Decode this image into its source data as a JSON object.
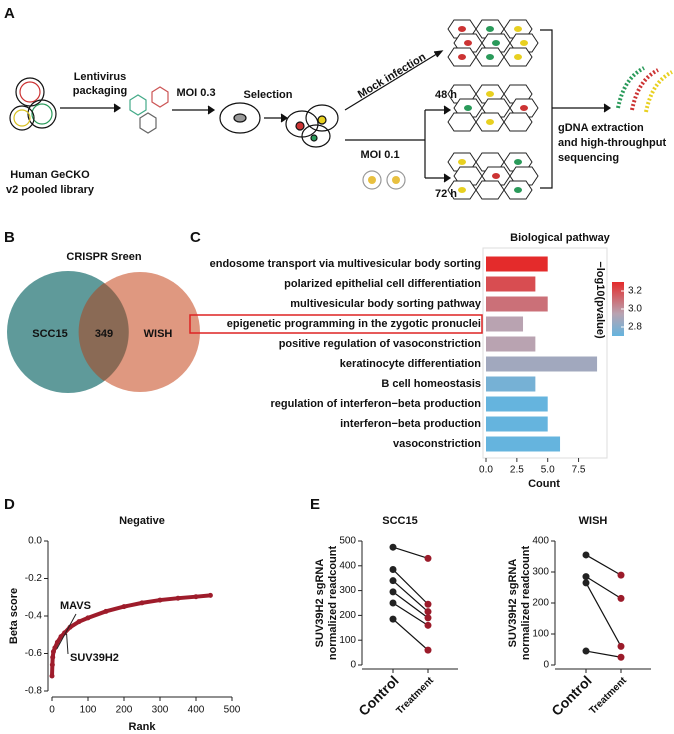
{
  "panel_labels": [
    "A",
    "B",
    "C",
    "D",
    "E"
  ],
  "workflow": {
    "library": [
      "Human GeCKO",
      "v2 pooled library"
    ],
    "packaging": [
      "Lentivirus",
      "packaging"
    ],
    "moi1": "MOI 0.3",
    "selection": "Selection",
    "mock": "Mock infection",
    "t48": "48 h",
    "moi2": "MOI  0.1",
    "t72": "72 h",
    "sequencing": [
      "gDNA extraction",
      "and  high-throughput",
      "sequencing"
    ]
  },
  "venn": {
    "title": "CRISPR Sreen",
    "left": "SCC15",
    "overlap": 349,
    "right": "WISH"
  },
  "chart_data": [
    {
      "type": "hbar",
      "title": "Biological pathway",
      "x_label": "Count",
      "categories": [
        "endosome transport via multivesicular body sorting",
        "polarized epithelial cell differentiation",
        "multivesicular body sorting pathway",
        "epigenetic programming in the zygotic pronuclei",
        "positive regulation of vasoconstriction",
        "keratinocyte differentiation",
        "B cell homeostasis",
        "regulation of interferon−beta production",
        "interferon−beta production",
        "vasoconstriction"
      ],
      "values": [
        5,
        4,
        5,
        3,
        4,
        9,
        4,
        5,
        5,
        6
      ],
      "color_values": [
        3.3,
        3.2,
        3.1,
        2.95,
        2.95,
        2.88,
        2.75,
        2.7,
        2.7,
        2.7
      ],
      "color_label": "−log10(pvalue)",
      "clim": [
        2.7,
        3.3
      ],
      "color_stops": [
        {
          "value": 2.7,
          "color": "#65b4de"
        },
        {
          "value": 2.95,
          "color": "#b9a3b1"
        },
        {
          "value": 3.3,
          "color": "#e42b2b"
        }
      ],
      "cticks": [
        2.8,
        {
          "value": 3.0,
          "label": "3.0"
        },
        3.2
      ],
      "highlight": 3,
      "xlim": [
        0,
        9.4
      ],
      "xticks": [
        {
          "value": 0,
          "label": "0.0"
        },
        2.5,
        {
          "value": 5,
          "label": "5.0"
        },
        7.5
      ]
    },
    {
      "type": "scatter",
      "title": "Negative",
      "x_label": "Rank",
      "y_label": "Beta score",
      "color": "#9e1c2b",
      "x": [
        0,
        1,
        2,
        4,
        8,
        15,
        25,
        35,
        50,
        75,
        100,
        150,
        200,
        250,
        300,
        350,
        400,
        440
      ],
      "y": [
        -0.72,
        -0.66,
        -0.62,
        -0.59,
        -0.57,
        -0.54,
        -0.51,
        -0.49,
        -0.46,
        -0.43,
        -0.41,
        -0.375,
        -0.35,
        -0.33,
        -0.315,
        -0.305,
        -0.297,
        -0.29
      ],
      "annotations": [
        {
          "text": "MAVS",
          "x": 8,
          "y": -0.57
        },
        {
          "text": "SUV39H2",
          "x": 35,
          "y": -0.49
        }
      ],
      "xlim": [
        0,
        500
      ],
      "xticks": [
        0,
        100,
        200,
        300,
        400,
        500
      ],
      "ylim": [
        -0.8,
        0
      ],
      "yticks": [
        -0.8,
        -0.6,
        -0.4,
        -0.2,
        {
          "value": 0,
          "label": "0.0"
        }
      ]
    },
    {
      "type": "paired",
      "title": "SCC15",
      "y_label": [
        "SUV39H2 sgRNA",
        "normalized readcount"
      ],
      "categories": [
        "Control",
        "Treatment"
      ],
      "colors": [
        "#222222",
        "#9b1b2a"
      ],
      "pairs": [
        [
          475,
          430
        ],
        [
          385,
          245
        ],
        [
          340,
          215
        ],
        [
          295,
          190
        ],
        [
          250,
          160
        ],
        [
          185,
          60
        ]
      ],
      "ylim": [
        0,
        500
      ],
      "yticks": [
        0,
        100,
        200,
        300,
        400,
        500
      ]
    },
    {
      "type": "paired",
      "title": "WISH",
      "y_label": [
        "SUV39H2 sgRNA",
        "normalized readcount"
      ],
      "categories": [
        "Control",
        "Treatment"
      ],
      "colors": [
        "#222222",
        "#9b1b2a"
      ],
      "pairs": [
        [
          355,
          290
        ],
        [
          285,
          215
        ],
        [
          265,
          60
        ],
        [
          45,
          25
        ]
      ],
      "ylim": [
        0,
        400
      ],
      "yticks": [
        0,
        100,
        200,
        300,
        400
      ]
    }
  ]
}
